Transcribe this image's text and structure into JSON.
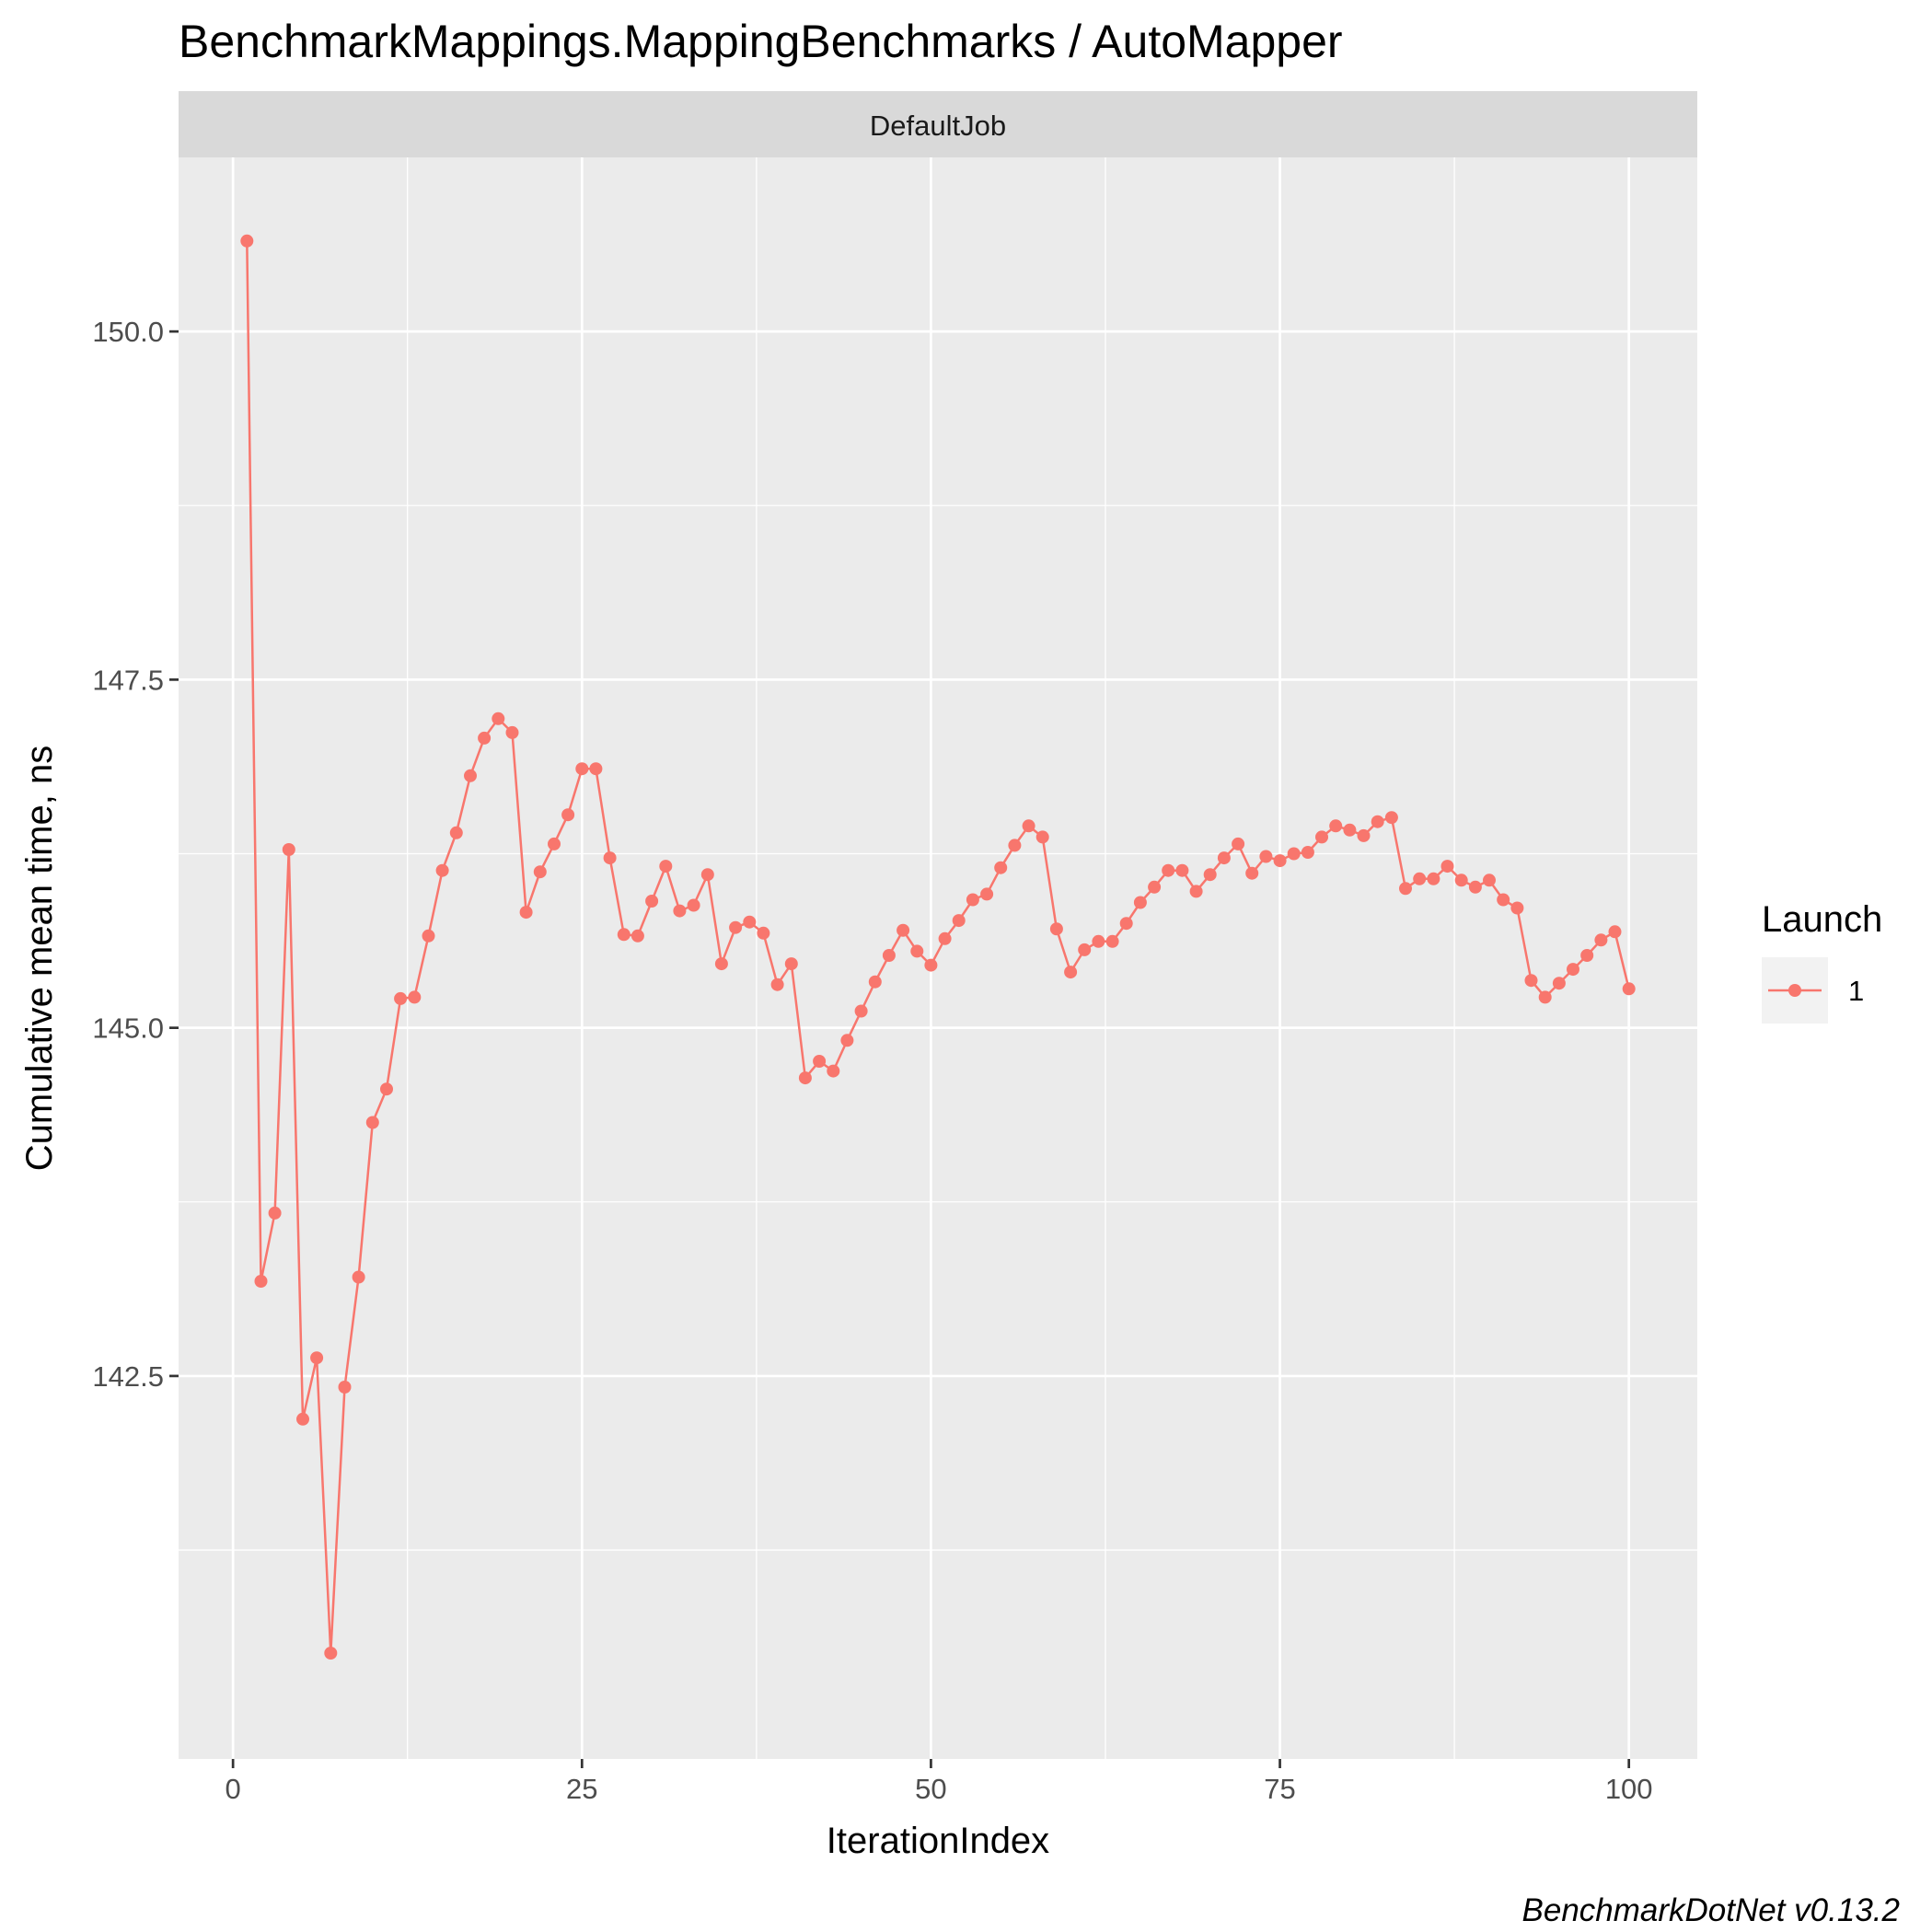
{
  "chart_data": {
    "type": "line",
    "title": "BenchmarkMappings.MappingBenchmarks / AutoMapper",
    "facet_label": "DefaultJob",
    "xlabel": "IterationIndex",
    "ylabel": "Cumulative mean time, ns",
    "caption": "BenchmarkDotNet v0.13.2",
    "xlim": [
      -3.9,
      104.9
    ],
    "ylim": [
      139.75,
      151.25
    ],
    "x_ticks": [
      0,
      25,
      50,
      75,
      100
    ],
    "x_tick_labels": [
      "0",
      "25",
      "50",
      "75",
      "100"
    ],
    "y_ticks": [
      142.5,
      145.0,
      147.5,
      150.0
    ],
    "y_tick_labels": [
      "142.5",
      "145.0",
      "147.5",
      "150.0"
    ],
    "grid": true,
    "legend": {
      "title": "Launch",
      "position": "right",
      "entries": [
        "1"
      ]
    },
    "colors": {
      "series": "#f8766d",
      "panel_background": "#ebebeb",
      "strip_background": "#d9d9d9",
      "grid": "#ffffff"
    },
    "series": [
      {
        "name": "1",
        "x": [
          1,
          2,
          3,
          4,
          5,
          6,
          7,
          8,
          9,
          10,
          11,
          12,
          13,
          14,
          15,
          16,
          17,
          18,
          19,
          20,
          21,
          22,
          23,
          24,
          25,
          26,
          27,
          28,
          29,
          30,
          31,
          32,
          33,
          34,
          35,
          36,
          37,
          38,
          39,
          40,
          41,
          42,
          43,
          44,
          45,
          46,
          47,
          48,
          49,
          50,
          51,
          52,
          53,
          54,
          55,
          56,
          57,
          58,
          59,
          60,
          61,
          62,
          63,
          64,
          65,
          66,
          67,
          68,
          69,
          70,
          71,
          72,
          73,
          74,
          75,
          76,
          77,
          78,
          79,
          80,
          81,
          82,
          83,
          84,
          85,
          86,
          87,
          88,
          89,
          90,
          91,
          92,
          93,
          94,
          95,
          96,
          97,
          98,
          99,
          100
        ],
        "values": [
          150.65,
          143.18,
          143.67,
          146.28,
          142.19,
          142.63,
          140.51,
          142.42,
          143.21,
          144.32,
          144.56,
          145.21,
          145.22,
          145.66,
          146.13,
          146.4,
          146.81,
          147.08,
          147.22,
          147.12,
          145.83,
          146.12,
          146.32,
          146.53,
          146.86,
          146.86,
          146.22,
          145.67,
          145.66,
          145.91,
          146.16,
          145.84,
          145.88,
          146.1,
          145.46,
          145.72,
          145.76,
          145.68,
          145.31,
          145.46,
          144.64,
          144.76,
          144.69,
          144.91,
          145.12,
          145.33,
          145.52,
          145.7,
          145.55,
          145.45,
          145.64,
          145.77,
          145.92,
          145.96,
          146.15,
          146.31,
          146.45,
          146.37,
          145.71,
          145.4,
          145.56,
          145.62,
          145.62,
          145.75,
          145.9,
          146.01,
          146.13,
          146.13,
          145.98,
          146.1,
          146.22,
          146.32,
          146.11,
          146.23,
          146.2,
          146.25,
          146.26,
          146.37,
          146.45,
          146.42,
          146.38,
          146.48,
          146.51,
          146.0,
          146.07,
          146.07,
          146.16,
          146.06,
          146.01,
          146.06,
          145.92,
          145.86,
          145.34,
          145.22,
          145.32,
          145.42,
          145.52,
          145.63,
          145.69,
          145.28
        ]
      }
    ]
  }
}
